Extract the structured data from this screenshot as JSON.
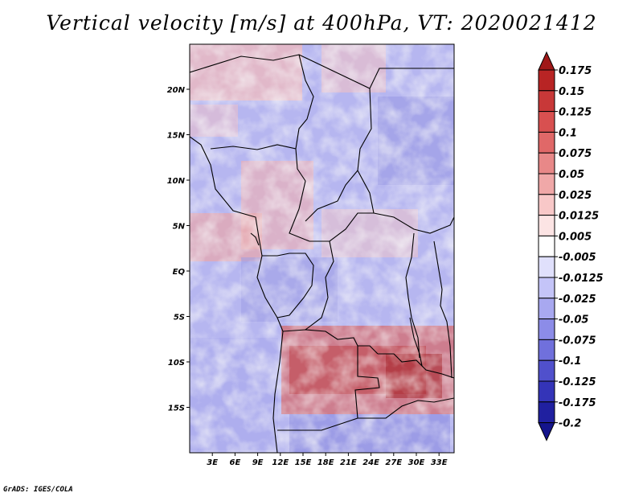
{
  "title": "Vertical velocity [m/s] at 400hPa, VT: 2020021412",
  "credit": "GrADS: IGES/COLA",
  "map": {
    "lat_range": [
      -20,
      25
    ],
    "lon_range": [
      0,
      35
    ],
    "lat_ticks": [
      {
        "value": 20,
        "label": "20N"
      },
      {
        "value": 15,
        "label": "15N"
      },
      {
        "value": 10,
        "label": "10N"
      },
      {
        "value": 5,
        "label": "5N"
      },
      {
        "value": 0,
        "label": "EQ"
      },
      {
        "value": -5,
        "label": "5S"
      },
      {
        "value": -10,
        "label": "10S"
      },
      {
        "value": -15,
        "label": "15S"
      }
    ],
    "lon_ticks": [
      {
        "value": 3,
        "label": "3E"
      },
      {
        "value": 6,
        "label": "6E"
      },
      {
        "value": 9,
        "label": "9E"
      },
      {
        "value": 12,
        "label": "12E"
      },
      {
        "value": 15,
        "label": "15E"
      },
      {
        "value": 18,
        "label": "18E"
      },
      {
        "value": 21,
        "label": "21E"
      },
      {
        "value": 24,
        "label": "24E"
      },
      {
        "value": 27,
        "label": "27E"
      },
      {
        "value": 30,
        "label": "30E"
      },
      {
        "value": 33,
        "label": "33E"
      }
    ]
  },
  "colorbar": {
    "labels": [
      "0.175",
      "0.15",
      "0.125",
      "0.1",
      "0.075",
      "0.05",
      "0.025",
      "0.0125",
      "0.005",
      "-0.005",
      "-0.0125",
      "-0.025",
      "-0.05",
      "-0.075",
      "-0.1",
      "-0.125",
      "-0.175",
      "-0.2"
    ],
    "colors": [
      "#a01818",
      "#b82424",
      "#c83838",
      "#d85050",
      "#e06868",
      "#e88888",
      "#f0a8a8",
      "#f8c8c8",
      "#fce4e4",
      "#ffffff",
      "#e0e0fc",
      "#c4c4f8",
      "#a8a8f0",
      "#8c8ce8",
      "#7070dc",
      "#5050cc",
      "#3434b8",
      "#2020a0",
      "#14148c"
    ]
  }
}
